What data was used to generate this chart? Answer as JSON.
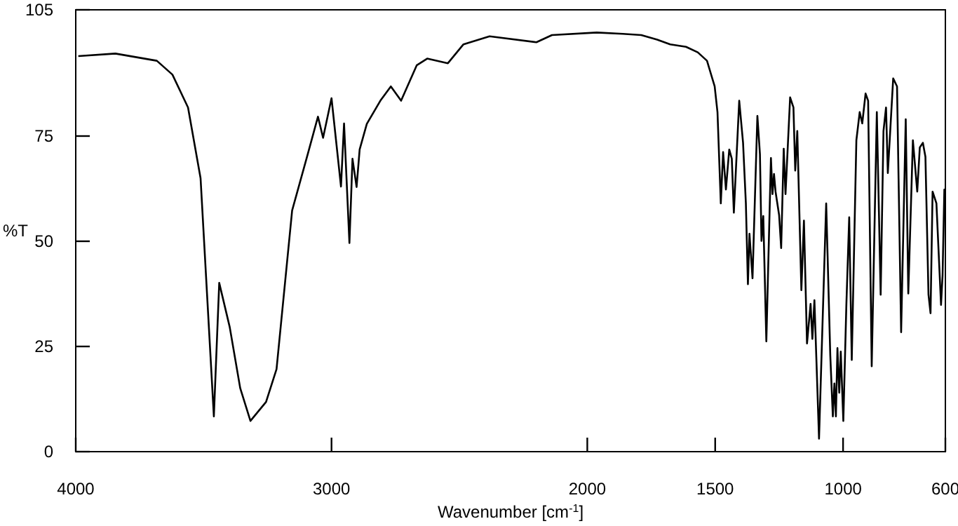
{
  "chart_data": {
    "type": "line",
    "xlabel": "Wavenumber [cm$^{-1}$]",
    "ylabel": "%T",
    "xlim": [
      4000,
      600
    ],
    "ylim": [
      0,
      105
    ],
    "xticks": [
      4000,
      3000,
      2000,
      1500,
      1000,
      600
    ],
    "yticks": [
      0,
      25,
      50,
      75,
      105
    ],
    "grid": false,
    "marker": "none",
    "line_style": "solid",
    "series": [
      {
        "color": "#000000",
        "x": [
          3990,
          3845,
          3683,
          3622,
          3561,
          3512,
          3460,
          3439,
          3398,
          3357,
          3317,
          3256,
          3215,
          3154,
          3093,
          3053,
          3033,
          3000,
          2963,
          2951,
          2930,
          2918,
          2902,
          2890,
          2862,
          2809,
          2768,
          2728,
          2667,
          2626,
          2545,
          2484,
          2382,
          2199,
          2138,
          1963,
          1861,
          1789,
          1727,
          1676,
          1614,
          1568,
          1532,
          1502,
          1491,
          1478,
          1469,
          1458,
          1445,
          1435,
          1427,
          1406,
          1391,
          1380,
          1372,
          1366,
          1354,
          1335,
          1325,
          1319,
          1312,
          1300,
          1282,
          1276,
          1270,
          1264,
          1250,
          1242,
          1232,
          1225,
          1207,
          1194,
          1187,
          1179,
          1163,
          1153,
          1141,
          1127,
          1120,
          1112,
          1094,
          1066,
          1050,
          1040,
          1034,
          1028,
          1022,
          1015,
          1009,
          999,
          987,
          976,
          966,
          948,
          935,
          925,
          912,
          902,
          888,
          868,
          853,
          842,
          832,
          825,
          804,
          789,
          773,
          755,
          745,
          727,
          710,
          700,
          688,
          678,
          666,
          658,
          650,
          635,
          617,
          611,
          604,
          601
        ],
        "values": [
          94,
          94.6,
          92.9,
          89.6,
          81.8,
          65,
          8.4,
          40.1,
          29.6,
          15.1,
          7.3,
          11.8,
          19.6,
          57.3,
          70.7,
          79.6,
          74.6,
          84,
          63,
          78,
          49.6,
          69.6,
          62.9,
          71.8,
          77.9,
          83.4,
          86.8,
          83.4,
          91.8,
          93.4,
          92.3,
          96.8,
          98.7,
          97.3,
          99,
          99.6,
          99.3,
          99,
          97.9,
          96.8,
          96.2,
          94.9,
          92.9,
          86.8,
          80.7,
          59,
          71.2,
          62.3,
          71.8,
          69.6,
          56.8,
          83.4,
          73.4,
          59,
          39.8,
          51.8,
          41.2,
          79.8,
          70.7,
          50.1,
          56,
          26.2,
          69.8,
          61.2,
          66,
          61.8,
          56.2,
          48.4,
          72,
          61.2,
          84.2,
          81.8,
          66.8,
          76.2,
          38.4,
          54.9,
          25.7,
          35.1,
          26.8,
          36,
          3.1,
          59,
          22.9,
          8.4,
          16.2,
          8.4,
          24.6,
          14,
          23.8,
          7.3,
          35.1,
          55.7,
          21.8,
          74,
          80.7,
          78,
          85.1,
          83.4,
          20.3,
          80.7,
          37.3,
          76.2,
          81.8,
          66.2,
          88.7,
          86.8,
          28.4,
          79,
          37.6,
          74,
          61.8,
          72.3,
          73.4,
          70.1,
          37.3,
          32.9,
          61.8,
          59,
          34.9,
          41.8,
          62.3,
          57
        ]
      }
    ]
  }
}
